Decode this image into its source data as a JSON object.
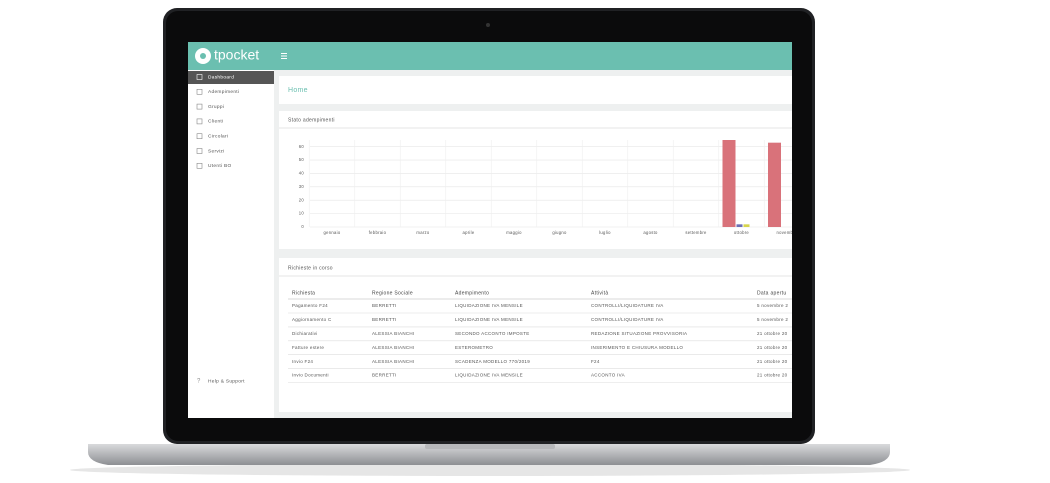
{
  "header": {
    "brand": "tpocket"
  },
  "sidebar": {
    "items": [
      "Dashboard",
      "Adempimenti",
      "Gruppi",
      "Clienti",
      "Circolari",
      "Servizi",
      "Utenti BO"
    ],
    "help": "Help & Support"
  },
  "page": {
    "title": "Home"
  },
  "chart_data": {
    "type": "bar",
    "title": "Stato adempimenti",
    "categories": [
      "gennaio",
      "febbraio",
      "marzo",
      "aprile",
      "maggio",
      "giugno",
      "luglio",
      "agosto",
      "settembre",
      "ottobre",
      "novembre"
    ],
    "series": [
      {
        "color": "#d9727a",
        "values": [
          0,
          0,
          0,
          0,
          0,
          0,
          0,
          0,
          0,
          65,
          63
        ]
      },
      {
        "color": "#6c6fb5",
        "values": [
          0,
          0,
          0,
          0,
          0,
          0,
          0,
          0,
          0,
          2,
          0
        ]
      },
      {
        "color": "#d6d44c",
        "values": [
          0,
          0,
          0,
          0,
          0,
          0,
          0,
          0,
          0,
          2,
          0
        ]
      }
    ],
    "ylim": [
      0,
      65
    ],
    "yticks": [
      0,
      10,
      20,
      30,
      40,
      50,
      60
    ],
    "grid": true
  },
  "table": {
    "title": "Richieste in corso",
    "columns": [
      "Richiesta",
      "Regione Sociale",
      "Adempimento",
      "Attività",
      "Data apertu"
    ],
    "rows": [
      [
        "Pagamento F24",
        "BERRETTI",
        "LIQUIDAZIONE IVA MENSILE",
        "CONTROLLI/LIQUIDATURE IVA",
        "5 novembre 2"
      ],
      [
        "Aggiornamento C",
        "BERRETTI",
        "LIQUIDAZIONE IVA MENSILE",
        "CONTROLLI/LIQUIDATURE IVA",
        "5 novembre 2"
      ],
      [
        "Dichiarativi",
        "ALESSIA BIANCHI",
        "SECONDO ACCONTO IMPOSTE",
        "REDAZIONE SITUAZIONE PROVVISORIA",
        "21 ottobre 20"
      ],
      [
        "Fatture estere",
        "ALESSIA BIANCHI",
        "ESTEROMETRO",
        "INSERIMENTO E CHIUSURA MODELLO",
        "21 ottobre 20"
      ],
      [
        "Invio F24",
        "ALESSIA BIANCHI",
        "SCADENZA MODELLO 770/2019",
        "F24",
        "21 ottobre 20"
      ],
      [
        "Invio Documenti",
        "BERRETTI",
        "LIQUIDAZIONE IVA MENSILE",
        "ACCONTO IVA",
        "21 ottobre 20"
      ]
    ]
  }
}
